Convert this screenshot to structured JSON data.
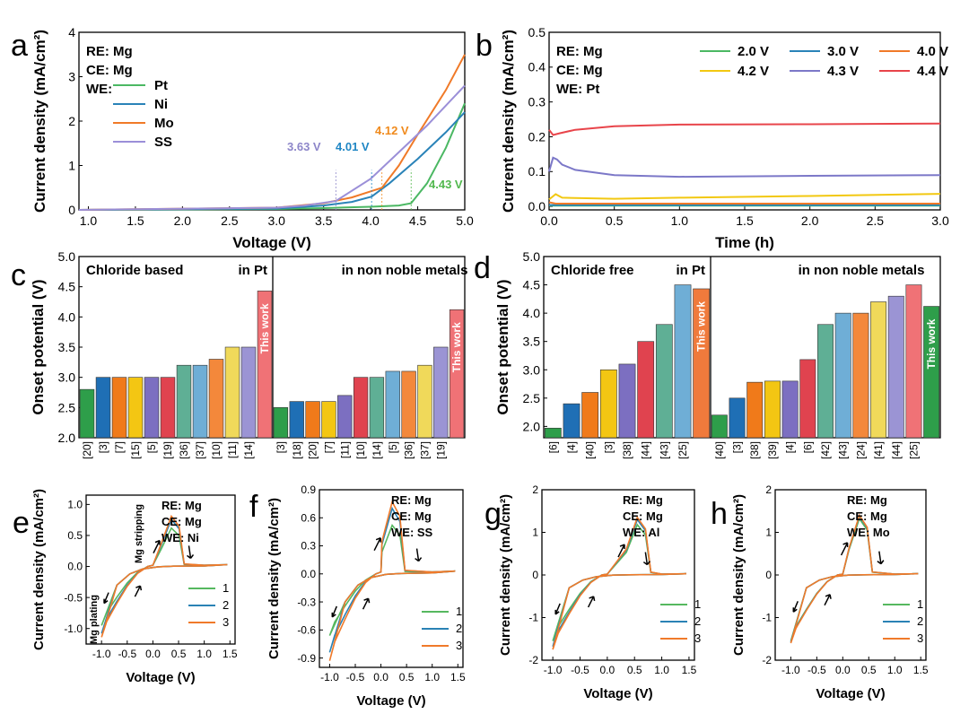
{
  "chart_data": [
    {
      "panel": "a",
      "type": "line",
      "xlabel": "Voltage (V)",
      "ylabel": "Current density (mA/cm²)",
      "xlim": [
        0.9,
        5.0
      ],
      "ylim": [
        0,
        4
      ],
      "xticks": [
        "1.0",
        "1.5",
        "2.0",
        "2.5",
        "3.0",
        "3.5",
        "4.0",
        "4.5",
        "5.0"
      ],
      "yticks": [
        "0",
        "1",
        "2",
        "3",
        "4"
      ],
      "setup": [
        "RE: Mg",
        "CE: Mg",
        "WE:"
      ],
      "series": [
        {
          "name": "Pt",
          "color": "#4bb863",
          "x": [
            0.9,
            3.0,
            3.5,
            4.0,
            4.3,
            4.43,
            4.6,
            4.8,
            5.0
          ],
          "y": [
            0,
            0.02,
            0.04,
            0.07,
            0.1,
            0.15,
            0.6,
            1.4,
            2.4
          ]
        },
        {
          "name": "Ni",
          "color": "#2a83b8",
          "x": [
            0.9,
            3.0,
            3.5,
            3.8,
            4.01,
            4.2,
            4.5,
            4.8,
            5.0
          ],
          "y": [
            0,
            0.03,
            0.1,
            0.18,
            0.3,
            0.6,
            1.15,
            1.75,
            2.2
          ]
        },
        {
          "name": "Mo",
          "color": "#f07a28",
          "x": [
            0.9,
            3.0,
            3.5,
            3.8,
            4.12,
            4.3,
            4.5,
            4.8,
            5.0
          ],
          "y": [
            0,
            0.05,
            0.15,
            0.28,
            0.5,
            1.0,
            1.7,
            2.7,
            3.5
          ]
        },
        {
          "name": "SS",
          "color": "#9b8fd8",
          "x": [
            0.9,
            3.0,
            3.3,
            3.63,
            4.0,
            4.3,
            4.6,
            5.0
          ],
          "y": [
            0,
            0.05,
            0.1,
            0.2,
            0.7,
            1.3,
            1.9,
            2.8
          ]
        }
      ],
      "annotations": [
        {
          "text": "3.63 V",
          "x": 3.63,
          "color": "#8d86c9"
        },
        {
          "text": "4.01 V",
          "x": 4.01,
          "color": "#1f86c4"
        },
        {
          "text": "4.12 V",
          "x": 4.12,
          "color": "#f08a1c"
        },
        {
          "text": "4.43 V",
          "x": 4.43,
          "color": "#52b84e"
        }
      ]
    },
    {
      "panel": "b",
      "type": "line",
      "xlabel": "Time (h)",
      "ylabel": "Current density (mA/cm²)",
      "xlim": [
        0,
        3.0
      ],
      "ylim": [
        -0.01,
        0.5
      ],
      "xticks": [
        "0.0",
        "0.5",
        "1.0",
        "1.5",
        "2.0",
        "2.5",
        "3.0"
      ],
      "yticks": [
        "0.0",
        "0.1",
        "0.2",
        "0.3",
        "0.4",
        "0.5"
      ],
      "setup": [
        "RE: Mg",
        "CE: Mg",
        "WE: Pt"
      ],
      "series": [
        {
          "name": "2.0 V",
          "color": "#4bb863",
          "x": [
            0,
            3.0
          ],
          "y": [
            0.002,
            0.002
          ]
        },
        {
          "name": "3.0 V",
          "color": "#2a83b8",
          "x": [
            0,
            3.0
          ],
          "y": [
            0.004,
            0.004
          ]
        },
        {
          "name": "4.0 V",
          "color": "#f07a28",
          "x": [
            0,
            0.05,
            3.0
          ],
          "y": [
            0.012,
            0.008,
            0.008
          ]
        },
        {
          "name": "4.2 V",
          "color": "#f2c811",
          "x": [
            0,
            0.05,
            0.1,
            0.5,
            1.0,
            2.0,
            3.0
          ],
          "y": [
            0.02,
            0.035,
            0.025,
            0.022,
            0.025,
            0.03,
            0.036
          ]
        },
        {
          "name": "4.3 V",
          "color": "#7c78c8",
          "x": [
            0,
            0.03,
            0.06,
            0.1,
            0.2,
            0.5,
            1.0,
            2.0,
            3.0
          ],
          "y": [
            0.1,
            0.14,
            0.135,
            0.12,
            0.105,
            0.09,
            0.085,
            0.088,
            0.09
          ]
        },
        {
          "name": "4.4 V",
          "color": "#e8444a",
          "x": [
            0,
            0.03,
            0.08,
            0.2,
            0.5,
            1.0,
            2.0,
            3.0
          ],
          "y": [
            0.22,
            0.205,
            0.21,
            0.22,
            0.23,
            0.235,
            0.236,
            0.238
          ]
        }
      ]
    },
    {
      "panel": "c",
      "type": "bar",
      "ylabel": "Onset potential (V)",
      "ylim": [
        2.0,
        5.0
      ],
      "yticks": [
        "2.0",
        "2.5",
        "3.0",
        "3.5",
        "4.0",
        "4.5",
        "5.0"
      ],
      "groups": [
        {
          "label": "Chloride based",
          "sublabel": "in Pt",
          "categories": [
            "[20]",
            "[3]",
            "[7]",
            "[15]",
            "[5]",
            "[19]",
            "[36]",
            "[37]",
            "[10]",
            "[11]",
            "[14]",
            "This work"
          ],
          "values": [
            2.8,
            3.0,
            3.0,
            3.0,
            3.0,
            3.0,
            3.2,
            3.2,
            3.3,
            3.5,
            3.5,
            4.43
          ],
          "colors": [
            "#2e9e4a",
            "#1f6fb5",
            "#f07a1a",
            "#f3c613",
            "#7c6fc1",
            "#e0434f",
            "#5faf95",
            "#6faed6",
            "#f3883b",
            "#f0d95a",
            "#9b94d4",
            "#f07276"
          ]
        },
        {
          "label": "in non noble metals",
          "sublabel": "",
          "categories": [
            "[3]",
            "[18]",
            "[20]",
            "[7]",
            "[11]",
            "[10]",
            "[14]",
            "[5]",
            "[36]",
            "[37]",
            "[19]",
            "This work"
          ],
          "values": [
            2.5,
            2.6,
            2.6,
            2.6,
            2.7,
            3.0,
            3.0,
            3.1,
            3.1,
            3.2,
            3.5,
            4.12
          ],
          "colors": [
            "#2e9e4a",
            "#1f6fb5",
            "#f07a1a",
            "#f3c613",
            "#7c6fc1",
            "#e0434f",
            "#5faf95",
            "#6faed6",
            "#f3883b",
            "#f0d95a",
            "#9b94d4",
            "#f07276"
          ]
        }
      ]
    },
    {
      "panel": "d",
      "type": "bar",
      "ylabel": "Onset potential (V)",
      "ylim": [
        1.8,
        5.0
      ],
      "yticks": [
        "2.0",
        "2.5",
        "3.0",
        "3.5",
        "4.0",
        "4.5",
        "5.0"
      ],
      "groups": [
        {
          "label": "Chloride free",
          "sublabel": "in Pt",
          "categories": [
            "[6]",
            "[4]",
            "[40]",
            "[3]",
            "[38]",
            "[44]",
            "[43]",
            "[25]",
            "This work"
          ],
          "values": [
            1.97,
            2.4,
            2.6,
            3.0,
            3.1,
            3.5,
            3.8,
            4.5,
            4.43
          ],
          "colors": [
            "#2e9e4a",
            "#1f6fb5",
            "#f07a1a",
            "#f3c613",
            "#7c6fc1",
            "#e0434f",
            "#5faf95",
            "#6faed6",
            "#f07a3c"
          ]
        },
        {
          "label": "in non noble metals",
          "sublabel": "",
          "categories": [
            "[40]",
            "[3]",
            "[38]",
            "[39]",
            "[4]",
            "[6]",
            "[42]",
            "[43]",
            "[24]",
            "[41]",
            "[44]",
            "[25]",
            "This work"
          ],
          "values": [
            2.2,
            2.5,
            2.78,
            2.8,
            2.8,
            3.18,
            3.8,
            4.0,
            4.0,
            4.2,
            4.3,
            4.5,
            4.12
          ],
          "colors": [
            "#2e9e4a",
            "#1f6fb5",
            "#f07a1a",
            "#f3c613",
            "#7c6fc1",
            "#e0434f",
            "#5faf95",
            "#6faed6",
            "#f3883b",
            "#f0d95a",
            "#9b94d4",
            "#f07276",
            "#2e9e4a"
          ]
        }
      ]
    },
    {
      "panel": "e",
      "type": "line",
      "xlabel": "Voltage (V)",
      "ylabel": "Current density (mA/cm²)",
      "xlim": [
        -1.3,
        1.6
      ],
      "ylim": [
        -1.25,
        1.15
      ],
      "xticks": [
        "-1.0",
        "-0.5",
        "0.0",
        "0.5",
        "1.0",
        "1.5"
      ],
      "yticks": [
        "-1.0",
        "-0.5",
        "0.0",
        "0.5",
        "1.0"
      ],
      "setup": [
        "RE:  Mg",
        "CE:  Mg",
        "WE:  Ni"
      ],
      "labels": [
        "Mg stripping",
        "Mg plating"
      ],
      "legend": [
        "1",
        "2",
        "3"
      ],
      "peaks": [
        0.62,
        0.76,
        0.81
      ],
      "mins": [
        -0.95,
        -1.08,
        -1.14
      ],
      "peak_x": 0.36
    },
    {
      "panel": "f",
      "type": "line",
      "xlabel": "Voltage (V)",
      "ylabel": "Current density (mA/cm²)",
      "xlim": [
        -1.2,
        1.6
      ],
      "ylim": [
        -1.0,
        0.9
      ],
      "xticks": [
        "-1.0",
        "-0.5",
        "0.0",
        "0.5",
        "1.0",
        "1.5"
      ],
      "yticks": [
        "-0.9",
        "-0.6",
        "-0.3",
        "0.0",
        "0.3",
        "0.6",
        "0.9"
      ],
      "setup": [
        "RE:  Mg",
        "CE:  Mg",
        "WE:  SS"
      ],
      "legend": [
        "1",
        "2",
        "3"
      ],
      "peaks": [
        0.52,
        0.7,
        0.77
      ],
      "mins": [
        -0.66,
        -0.84,
        -0.93
      ],
      "peak_x": 0.22
    },
    {
      "panel": "g",
      "type": "line",
      "xlabel": "Voltage (V)",
      "ylabel": "Current density (mA/cm²)",
      "xlim": [
        -1.2,
        1.6
      ],
      "ylim": [
        -2,
        2
      ],
      "xticks": [
        "-1.0",
        "-0.5",
        "0.0",
        "0.5",
        "1.0",
        "1.5"
      ],
      "yticks": [
        "-2",
        "-1",
        "0",
        "1",
        "2"
      ],
      "setup": [
        "RE:  Mg",
        "CE:  Mg",
        "WE:  Al"
      ],
      "legend": [
        "1",
        "2",
        "3"
      ],
      "peaks": [
        1.18,
        1.3,
        1.35
      ],
      "mins": [
        -1.55,
        -1.68,
        -1.75
      ],
      "peak_x": 0.55
    },
    {
      "panel": "h",
      "type": "line",
      "xlabel": "Voltage (V)",
      "ylabel": "Current density (mA/cm²)",
      "xlim": [
        -1.3,
        1.6
      ],
      "ylim": [
        -2,
        2
      ],
      "xticks": [
        "-1.0",
        "-0.5",
        "0.0",
        "0.5",
        "1.0",
        "1.5"
      ],
      "yticks": [
        "-2",
        "-1",
        "0",
        "1",
        "2"
      ],
      "setup": [
        "RE:  Mg",
        "CE:  Mg",
        "WE:  Mo"
      ],
      "legend": [
        "1",
        "2",
        "3"
      ],
      "peaks": [
        1.32,
        1.38,
        1.4
      ],
      "mins": [
        -1.55,
        -1.58,
        -1.6
      ],
      "peak_x": 0.32
    }
  ],
  "cv_colors": [
    "#56b85f",
    "#2a82b5",
    "#f07a2a"
  ],
  "this_work_label": "This work"
}
